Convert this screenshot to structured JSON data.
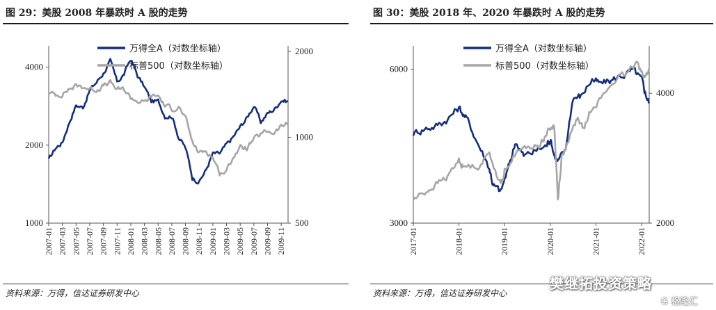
{
  "left": {
    "title": "图 29：美股 2008 年暴跌时 A 股的走势",
    "source": "资料来源：万得，信达证券研发中心"
  },
  "right": {
    "title": "图 30：美股 2018 年、2020 年暴跌时 A 股的走势",
    "source": "资料来源：万得，信达证券研发中心"
  },
  "watermark": "樊继拓投资策略",
  "watermark2": "G 格隆汇",
  "colors": {
    "wind_a": "#142d7f",
    "sp500": "#a6a6a6"
  },
  "chart_data": [
    {
      "type": "line",
      "legend_position": "top-center",
      "grid": false,
      "x_ticks": [
        "2007-01",
        "2007-03",
        "2007-05",
        "2007-07",
        "2007-09",
        "2007-11",
        "2008-01",
        "2008-03",
        "2008-05",
        "2008-07",
        "2008-09",
        "2008-11",
        "2009-01",
        "2009-03",
        "2009-05",
        "2009-07",
        "2009-09",
        "2009-11"
      ],
      "x_range": [
        "2007-01",
        "2009-12"
      ],
      "y_left": {
        "label": "",
        "scale": "log",
        "range": [
          1000,
          4600
        ],
        "ticks": [
          "1000",
          "2000",
          "4000"
        ]
      },
      "y_right": {
        "label": "",
        "scale": "log",
        "range": [
          500,
          2000
        ],
        "ticks": [
          "500",
          "1000",
          "2000"
        ]
      },
      "series": [
        {
          "name": "万得全A（对数坐标轴）",
          "axis": "left",
          "color": "#142d7f",
          "x": [
            "2007-01",
            "2007-02",
            "2007-03",
            "2007-04",
            "2007-05",
            "2007-06",
            "2007-07",
            "2007-08",
            "2007-09",
            "2007-10",
            "2007-11",
            "2007-12",
            "2008-01",
            "2008-02",
            "2008-03",
            "2008-04",
            "2008-05",
            "2008-06",
            "2008-07",
            "2008-08",
            "2008-09",
            "2008-10",
            "2008-11",
            "2008-12",
            "2009-01",
            "2009-02",
            "2009-03",
            "2009-04",
            "2009-05",
            "2009-06",
            "2009-07",
            "2009-08",
            "2009-09",
            "2009-10",
            "2009-11",
            "2009-12"
          ],
          "values": [
            1750,
            1950,
            2050,
            2450,
            2850,
            2800,
            3250,
            3500,
            3800,
            4200,
            3500,
            3750,
            4300,
            3700,
            3350,
            2950,
            2950,
            2600,
            2600,
            2150,
            1950,
            1500,
            1450,
            1600,
            1850,
            1850,
            2000,
            2150,
            2350,
            2550,
            2850,
            2450,
            2650,
            2750,
            3000,
            2950
          ]
        },
        {
          "name": "标普500（对数坐标轴）",
          "axis": "right",
          "color": "#a6a6a6",
          "x": [
            "2007-01",
            "2007-02",
            "2007-03",
            "2007-04",
            "2007-05",
            "2007-06",
            "2007-07",
            "2007-08",
            "2007-09",
            "2007-10",
            "2007-11",
            "2007-12",
            "2008-01",
            "2008-02",
            "2008-03",
            "2008-04",
            "2008-05",
            "2008-06",
            "2008-07",
            "2008-08",
            "2008-09",
            "2008-10",
            "2008-11",
            "2008-12",
            "2009-01",
            "2009-02",
            "2009-03",
            "2009-04",
            "2009-05",
            "2009-06",
            "2009-07",
            "2009-08",
            "2009-09",
            "2009-10",
            "2009-11",
            "2009-12"
          ],
          "values": [
            1430,
            1410,
            1420,
            1480,
            1510,
            1505,
            1480,
            1470,
            1520,
            1550,
            1470,
            1470,
            1380,
            1340,
            1320,
            1390,
            1400,
            1290,
            1260,
            1280,
            1160,
            960,
            880,
            900,
            850,
            750,
            760,
            860,
            920,
            920,
            980,
            1020,
            1050,
            1040,
            1090,
            1110
          ]
        }
      ]
    },
    {
      "type": "line",
      "legend_position": "top-center",
      "grid": false,
      "x_ticks": [
        "2017-01",
        "2018-01",
        "2019-01",
        "2020-01",
        "2021-01",
        "2022-01"
      ],
      "x_range": [
        "2017-01",
        "2022-03"
      ],
      "y_left": {
        "label": "",
        "scale": "log",
        "range": [
          3000,
          6500
        ],
        "ticks": [
          "3000",
          "6000"
        ]
      },
      "y_right": {
        "label": "",
        "scale": "log",
        "range": [
          2000,
          5000
        ],
        "ticks": [
          "2000",
          "4000"
        ]
      },
      "series": [
        {
          "name": "万得全A（对数坐标轴）",
          "axis": "left",
          "color": "#142d7f",
          "x": [
            "2017-01",
            "2017-04",
            "2017-07",
            "2017-10",
            "2018-01",
            "2018-03",
            "2018-06",
            "2018-09",
            "2018-10",
            "2018-12",
            "2019-02",
            "2019-04",
            "2019-06",
            "2019-09",
            "2019-12",
            "2020-01",
            "2020-02",
            "2020-03",
            "2020-05",
            "2020-07",
            "2020-09",
            "2020-12",
            "2021-02",
            "2021-05",
            "2021-08",
            "2021-11",
            "2022-01",
            "2022-02",
            "2022-03"
          ],
          "values": [
            4500,
            4600,
            4650,
            4800,
            5050,
            4800,
            4300,
            3850,
            3550,
            3450,
            3850,
            4350,
            4050,
            4150,
            4250,
            4400,
            4100,
            3950,
            4150,
            5300,
            5300,
            5750,
            5600,
            5700,
            5850,
            5950,
            5700,
            5400,
            5150
          ]
        },
        {
          "name": "标普500（对数坐标轴）",
          "axis": "right",
          "color": "#a6a6a6",
          "x": [
            "2017-01",
            "2017-04",
            "2017-07",
            "2017-10",
            "2018-01",
            "2018-02",
            "2018-06",
            "2018-09",
            "2018-12",
            "2019-01",
            "2019-04",
            "2019-07",
            "2019-10",
            "2019-12",
            "2020-02",
            "2020-03",
            "2020-04",
            "2020-06",
            "2020-08",
            "2020-10",
            "2020-12",
            "2021-03",
            "2021-06",
            "2021-09",
            "2021-12",
            "2022-01",
            "2022-02",
            "2022-03"
          ],
          "values": [
            2270,
            2360,
            2460,
            2560,
            2800,
            2700,
            2720,
            2900,
            2450,
            2650,
            2910,
            3000,
            3020,
            3230,
            3380,
            2250,
            2850,
            3100,
            3500,
            3300,
            3750,
            3950,
            4300,
            4400,
            4780,
            4450,
            4350,
            4550
          ]
        }
      ]
    }
  ]
}
